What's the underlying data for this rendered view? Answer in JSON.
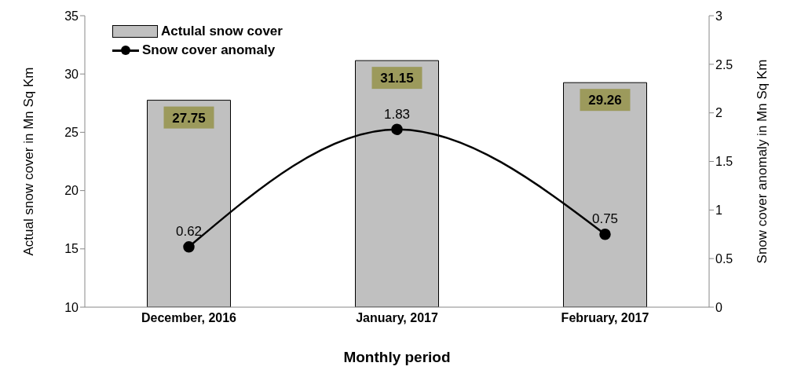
{
  "chart_data": {
    "type": "bar",
    "categories": [
      "December, 2016",
      "January, 2017",
      "February, 2017"
    ],
    "xlabel": "Monthly period",
    "ylabel": "Actual snow cover in Mn Sq Km",
    "y2label": "Snow cover anomaly in Mn Sq Km",
    "series": [
      {
        "name": "Actulal snow cover",
        "color": "#c0c0c0",
        "values": [
          27.75,
          31.15,
          29.26
        ]
      },
      {
        "name": "Snow cover anomaly",
        "type": "line",
        "axis": "y2",
        "color": "#000000",
        "values": [
          0.62,
          1.83,
          0.75
        ]
      }
    ],
    "ylim": [
      10,
      35
    ],
    "yticks": [
      10,
      15,
      20,
      25,
      30,
      35
    ],
    "y2lim": [
      0,
      3
    ],
    "y2ticks": [
      0,
      0.5,
      1,
      1.5,
      2,
      2.5,
      3
    ],
    "data_labels": true,
    "legend": "top left",
    "marker": "circle",
    "grid": false
  }
}
